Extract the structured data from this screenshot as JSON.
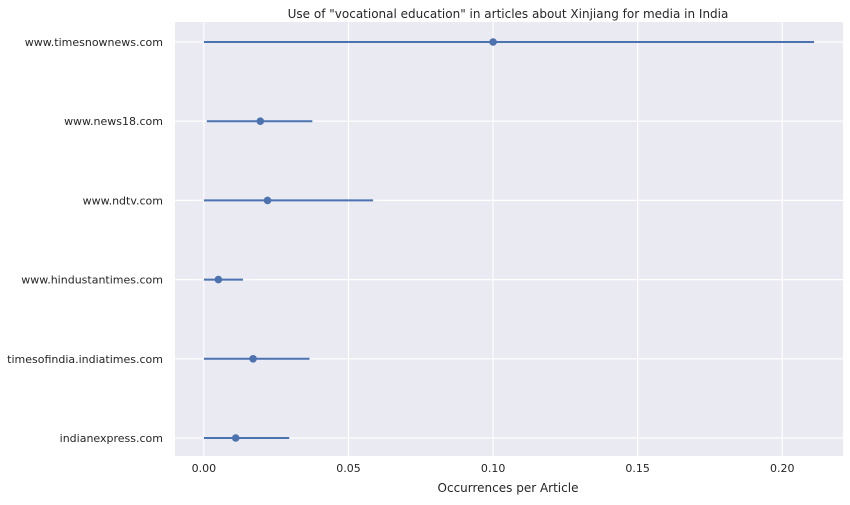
{
  "chart_data": {
    "type": "scatter",
    "title": "Use of \"vocational education\" in articles about Xinjiang for media in India",
    "xlabel": "Occurrences per Article",
    "ylabel": "",
    "xlim": [
      -0.01,
      0.221
    ],
    "x_ticks": [
      0.0,
      0.05,
      0.1,
      0.15,
      0.2
    ],
    "x_tick_labels": [
      "0.00",
      "0.05",
      "0.10",
      "0.15",
      "0.20"
    ],
    "grid": true,
    "legend": false,
    "categories": [
      "www.timesnownews.com",
      "www.news18.com",
      "www.ndtv.com",
      "www.hindustantimes.com",
      "timesofindia.indiatimes.com",
      "indianexpress.com"
    ],
    "points": [
      {
        "label": "www.timesnownews.com",
        "value": 0.1,
        "ci_low": 0.0,
        "ci_high": 0.211
      },
      {
        "label": "www.news18.com",
        "value": 0.0195,
        "ci_low": 0.001,
        "ci_high": 0.0375
      },
      {
        "label": "www.ndtv.com",
        "value": 0.022,
        "ci_low": 0.0,
        "ci_high": 0.0585
      },
      {
        "label": "www.hindustantimes.com",
        "value": 0.005,
        "ci_low": 0.0,
        "ci_high": 0.0135
      },
      {
        "label": "timesofindia.indiatimes.com",
        "value": 0.017,
        "ci_low": 0.0,
        "ci_high": 0.0365
      },
      {
        "label": "indianexpress.com",
        "value": 0.011,
        "ci_low": 0.0,
        "ci_high": 0.0295
      }
    ]
  },
  "colors": {
    "background": "#eaeaf2",
    "grid": "#ffffff",
    "series": "#4c72b0",
    "text": "#262626"
  }
}
